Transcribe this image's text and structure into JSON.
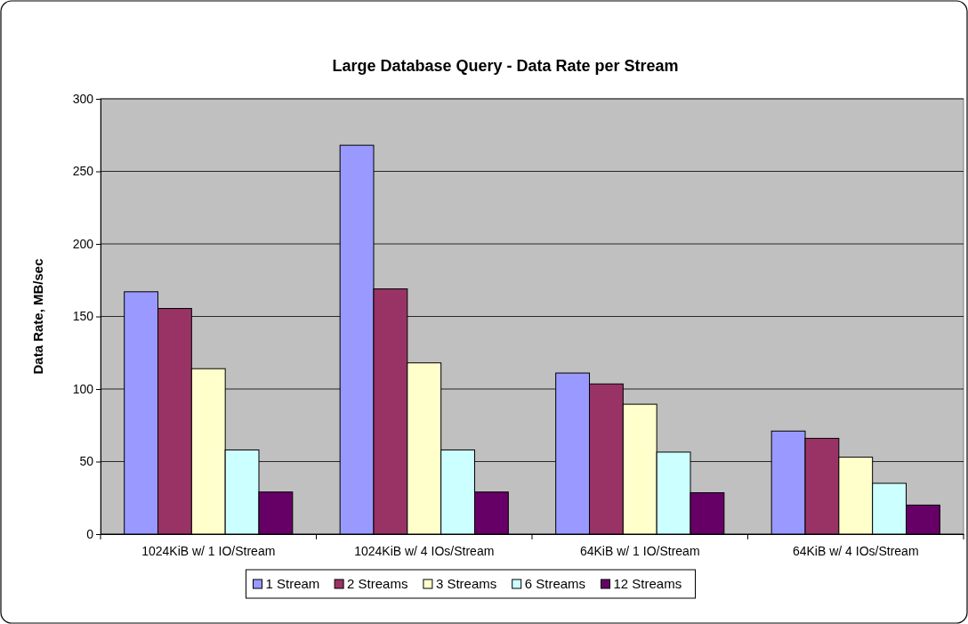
{
  "chart_data": {
    "type": "bar",
    "title": "Large Database Query - Data Rate per Stream",
    "ylabel": "Data Rate, MB/sec",
    "categories": [
      "1024KiB w/ 1 IO/Stream",
      "1024KiB w/ 4 IOs/Stream",
      "64KiB w/ 1 IO/Stream",
      "64KiB w/ 4 IOs/Stream"
    ],
    "series": [
      {
        "name": "1 Stream",
        "color": "#9999ff",
        "values": [
          167,
          268,
          111,
          71
        ]
      },
      {
        "name": "2 Streams",
        "color": "#993366",
        "values": [
          155.5,
          169,
          103.5,
          66
        ]
      },
      {
        "name": "3 Streams",
        "color": "#ffffcc",
        "values": [
          114,
          118,
          89.5,
          53
        ]
      },
      {
        "name": "6 Streams",
        "color": "#ccffff",
        "values": [
          58,
          58,
          56.5,
          35
        ]
      },
      {
        "name": "12 Streams",
        "color": "#660066",
        "values": [
          29,
          29,
          28.5,
          20
        ]
      }
    ],
    "ylim": [
      0,
      300
    ],
    "yticks": [
      0,
      50,
      100,
      150,
      200,
      250,
      300
    ],
    "grid": "y",
    "legend": "bottom"
  }
}
